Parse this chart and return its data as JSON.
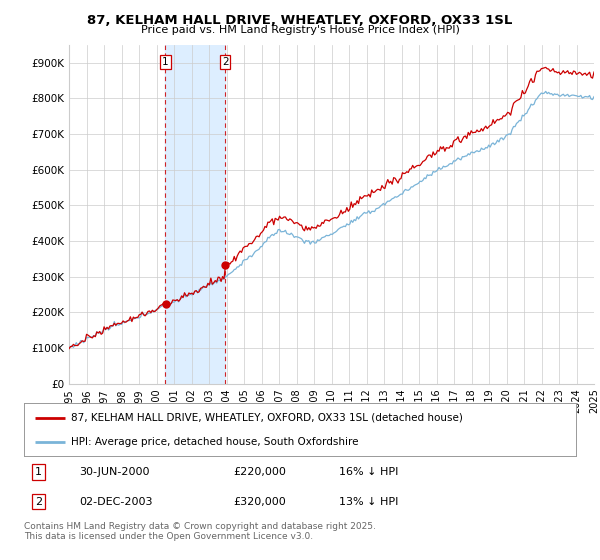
{
  "title": "87, KELHAM HALL DRIVE, WHEATLEY, OXFORD, OX33 1SL",
  "subtitle": "Price paid vs. HM Land Registry's House Price Index (HPI)",
  "yticks": [
    0,
    100000,
    200000,
    300000,
    400000,
    500000,
    600000,
    700000,
    800000,
    900000
  ],
  "ytick_labels": [
    "£0",
    "£100K",
    "£200K",
    "£300K",
    "£400K",
    "£500K",
    "£600K",
    "£700K",
    "£800K",
    "£900K"
  ],
  "xlim_years": [
    1995,
    2025
  ],
  "ylim": [
    0,
    950000
  ],
  "sale1_date": 2000.5,
  "sale1_price": 220000,
  "sale1_label": "1",
  "sale2_date": 2003.92,
  "sale2_price": 320000,
  "sale2_label": "2",
  "legend_entry1": "87, KELHAM HALL DRIVE, WHEATLEY, OXFORD, OX33 1SL (detached house)",
  "legend_entry2": "HPI: Average price, detached house, South Oxfordshire",
  "footer": "Contains HM Land Registry data © Crown copyright and database right 2025.\nThis data is licensed under the Open Government Licence v3.0.",
  "hpi_color": "#7ab4d8",
  "price_color": "#cc0000",
  "vline_color": "#cc0000",
  "shade_color": "#ddeeff",
  "background_color": "#ffffff",
  "grid_color": "#cccccc"
}
